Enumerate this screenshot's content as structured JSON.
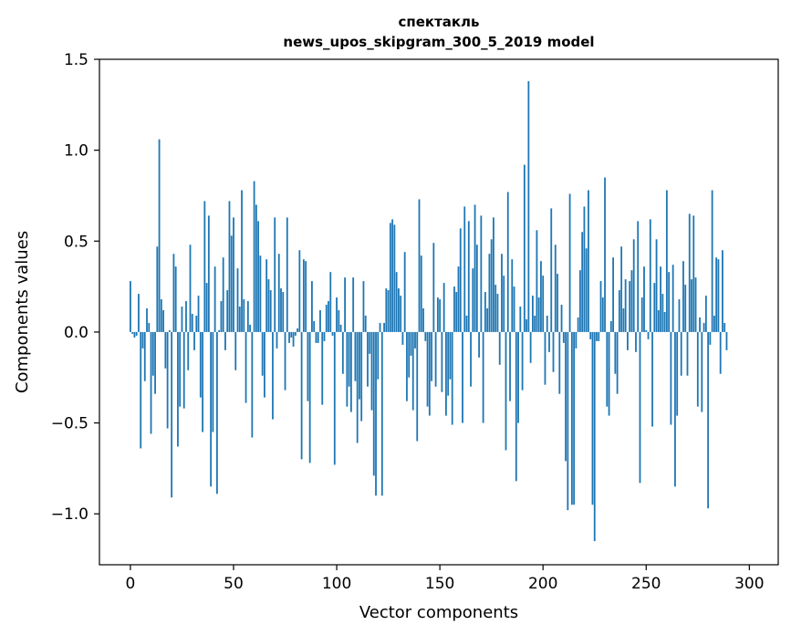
{
  "chart_data": {
    "type": "bar",
    "title_line1": "спектакль",
    "title_line2": "news_upos_skipgram_300_5_2019 model",
    "xlabel": "Vector components",
    "ylabel": "Components values",
    "xlim": [
      -15,
      314
    ],
    "ylim": [
      -1.28,
      1.5
    ],
    "xticks": [
      0,
      50,
      100,
      150,
      200,
      250,
      300
    ],
    "xtick_labels": [
      "0",
      "50",
      "100",
      "150",
      "200",
      "250",
      "300"
    ],
    "yticks": [
      -1.0,
      -0.5,
      0.0,
      0.5,
      1.0,
      1.5
    ],
    "ytick_labels": [
      "−1.0",
      "−0.5",
      "0.0",
      "0.5",
      "1.0",
      "1.5"
    ],
    "bar_color": "#1f77b4",
    "values": [
      0.28,
      -0.01,
      -0.03,
      -0.02,
      0.21,
      -0.64,
      -0.09,
      -0.27,
      0.13,
      0.05,
      -0.56,
      -0.24,
      -0.34,
      0.47,
      1.06,
      0.18,
      0.12,
      -0.2,
      -0.53,
      0.01,
      -0.91,
      0.43,
      0.36,
      -0.63,
      -0.41,
      0.14,
      -0.42,
      0.17,
      -0.21,
      0.48,
      0.1,
      -0.1,
      0.09,
      0.2,
      -0.36,
      -0.55,
      0.72,
      0.27,
      0.64,
      -0.85,
      -0.55,
      0.36,
      -0.89,
      0.01,
      0.17,
      0.41,
      -0.1,
      0.23,
      0.72,
      0.53,
      0.63,
      -0.21,
      0.35,
      0.14,
      0.78,
      0.18,
      -0.39,
      0.17,
      0.04,
      -0.58,
      0.83,
      0.7,
      0.61,
      0.42,
      -0.24,
      -0.36,
      0.4,
      0.29,
      0.23,
      -0.48,
      0.63,
      -0.09,
      0.43,
      0.24,
      0.22,
      -0.32,
      0.63,
      -0.06,
      -0.03,
      -0.08,
      -0.02,
      0.02,
      0.45,
      -0.7,
      0.4,
      0.39,
      -0.38,
      -0.72,
      0.28,
      0.06,
      -0.06,
      -0.06,
      0.12,
      -0.4,
      -0.05,
      0.15,
      0.17,
      0.33,
      -0.02,
      -0.73,
      0.19,
      0.12,
      0.04,
      -0.23,
      0.3,
      -0.41,
      -0.3,
      -0.44,
      0.3,
      -0.27,
      -0.61,
      -0.37,
      -0.49,
      0.28,
      0.09,
      -0.3,
      -0.12,
      -0.43,
      -0.79,
      -0.9,
      -0.26,
      0.05,
      -0.9,
      0.05,
      0.24,
      0.23,
      0.6,
      0.62,
      0.59,
      0.33,
      0.24,
      0.2,
      -0.07,
      0.44,
      -0.38,
      -0.25,
      -0.13,
      -0.43,
      -0.09,
      -0.6,
      0.73,
      0.42,
      0.13,
      -0.05,
      -0.41,
      -0.46,
      -0.27,
      0.49,
      -0.3,
      0.19,
      0.18,
      -0.33,
      0.27,
      -0.46,
      -0.35,
      -0.26,
      -0.51,
      0.25,
      0.22,
      0.36,
      0.57,
      -0.5,
      0.69,
      0.09,
      0.61,
      -0.3,
      0.35,
      0.7,
      0.48,
      -0.14,
      0.64,
      -0.5,
      0.22,
      0.13,
      0.43,
      0.51,
      0.63,
      0.26,
      0.21,
      -0.18,
      0.43,
      0.31,
      -0.65,
      0.77,
      -0.38,
      0.4,
      0.25,
      -0.82,
      -0.5,
      0.14,
      -0.32,
      0.92,
      0.07,
      1.38,
      -0.17,
      0.2,
      0.09,
      0.56,
      0.19,
      0.39,
      0.31,
      -0.29,
      0.09,
      -0.11,
      0.68,
      -0.22,
      0.48,
      0.32,
      -0.34,
      0.15,
      -0.06,
      -0.71,
      -0.98,
      0.76,
      -0.95,
      -0.95,
      -0.09,
      0.08,
      0.34,
      0.55,
      0.69,
      0.46,
      0.78,
      -0.04,
      -0.95,
      -1.15,
      -0.05,
      -0.05,
      0.28,
      0.19,
      0.85,
      -0.41,
      -0.46,
      0.06,
      0.41,
      -0.23,
      -0.34,
      0.23,
      0.47,
      0.13,
      0.29,
      -0.1,
      0.28,
      0.34,
      0.51,
      -0.11,
      0.61,
      -0.83,
      0.19,
      0.36,
      0.01,
      -0.04,
      0.62,
      -0.52,
      0.27,
      0.51,
      0.12,
      0.36,
      0.21,
      0.11,
      0.78,
      0.33,
      -0.51,
      0.37,
      -0.85,
      -0.46,
      0.18,
      -0.24,
      0.39,
      0.26,
      -0.24,
      0.65,
      0.29,
      0.64,
      0.3,
      -0.41,
      0.08,
      -0.44,
      0.05,
      0.2,
      -0.97,
      -0.07,
      0.78,
      0.09,
      0.41,
      0.4,
      -0.23,
      0.45,
      0.05,
      -0.1
    ]
  }
}
